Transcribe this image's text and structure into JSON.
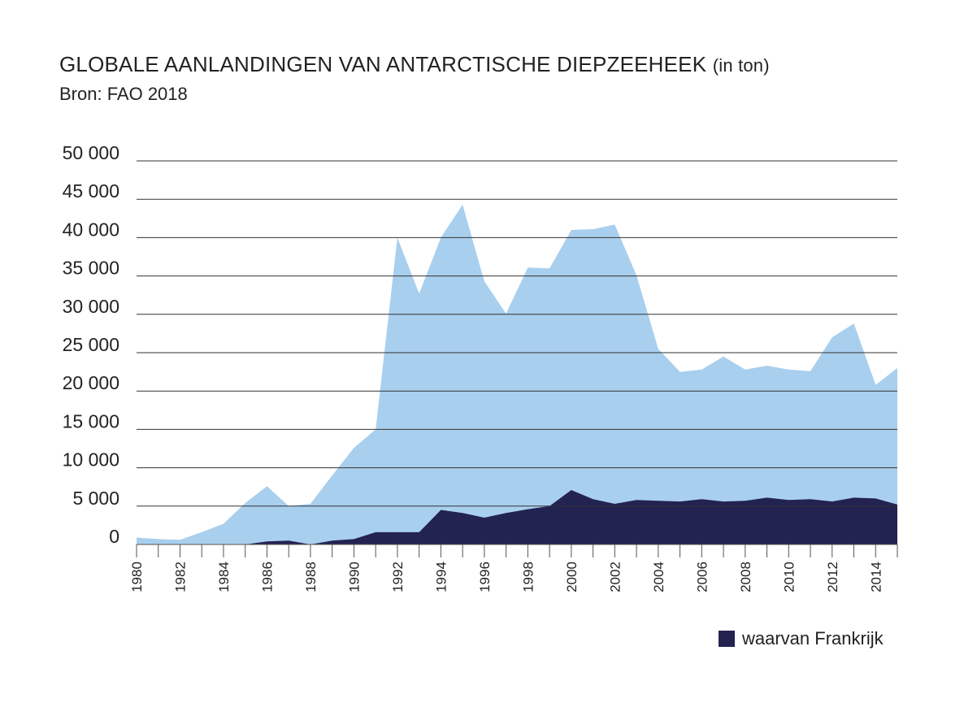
{
  "title": "GLOBALE AANLANDINGEN VAN ANTARCTISCHE DIEPZEEHEEK",
  "title_unit": "(in ton)",
  "subtitle": "Bron: FAO 2018",
  "colors": {
    "world": "#a9cfee",
    "france": "#232352",
    "grid": "#333333",
    "axis": "#555555"
  },
  "legend": {
    "label": "waarvan Frankrijk",
    "color": "#232352"
  },
  "chart_data": {
    "type": "area",
    "title": "GLOBALE AANLANDINGEN VAN ANTARCTISCHE DIEPZEEHEEK (in ton)",
    "subtitle": "Bron: FAO 2018",
    "x": [
      1980,
      1981,
      1982,
      1983,
      1984,
      1985,
      1986,
      1987,
      1988,
      1989,
      1990,
      1991,
      1992,
      1993,
      1994,
      1995,
      1996,
      1997,
      1998,
      1999,
      2000,
      2001,
      2002,
      2003,
      2004,
      2005,
      2006,
      2007,
      2008,
      2009,
      2010,
      2011,
      2012,
      2013,
      2014,
      2015
    ],
    "x_tick_labels": [
      "1980",
      "1982",
      "1984",
      "1986",
      "1988",
      "1990",
      "1992",
      "1994",
      "1996",
      "1998",
      "2000",
      "2002",
      "2004",
      "2006",
      "2008",
      "2010",
      "2012",
      "2014"
    ],
    "y_tick_labels": [
      "0",
      "5 000",
      "10 000",
      "15 000",
      "20 000",
      "25 000",
      "30 000",
      "35 000",
      "40 000",
      "45 000",
      "50 000"
    ],
    "y_ticks": [
      0,
      5000,
      10000,
      15000,
      20000,
      25000,
      30000,
      35000,
      40000,
      45000,
      50000
    ],
    "ylim": [
      0,
      50000
    ],
    "series": [
      {
        "name": "",
        "values": [
          900,
          700,
          600,
          1600,
          2700,
          5400,
          7600,
          5000,
          5300,
          9000,
          12600,
          15000,
          40000,
          32700,
          40000,
          44300,
          34300,
          30100,
          36100,
          36000,
          41000,
          41100,
          41700,
          35100,
          25500,
          22500,
          22800,
          24500,
          22800,
          23300,
          22800,
          22600,
          27000,
          28800,
          20800,
          23000
        ]
      },
      {
        "name": "waarvan Frankrijk",
        "values": [
          0,
          0,
          0,
          0,
          0,
          0,
          400,
          500,
          0,
          500,
          700,
          1600,
          1600,
          1600,
          4500,
          4100,
          3500,
          4100,
          4600,
          5000,
          7100,
          5900,
          5300,
          5800,
          5700,
          5600,
          5900,
          5600,
          5700,
          6100,
          5800,
          5900,
          5600,
          6100,
          6000,
          5200
        ]
      }
    ],
    "gridlines": true,
    "legend_position": "bottom-right"
  }
}
